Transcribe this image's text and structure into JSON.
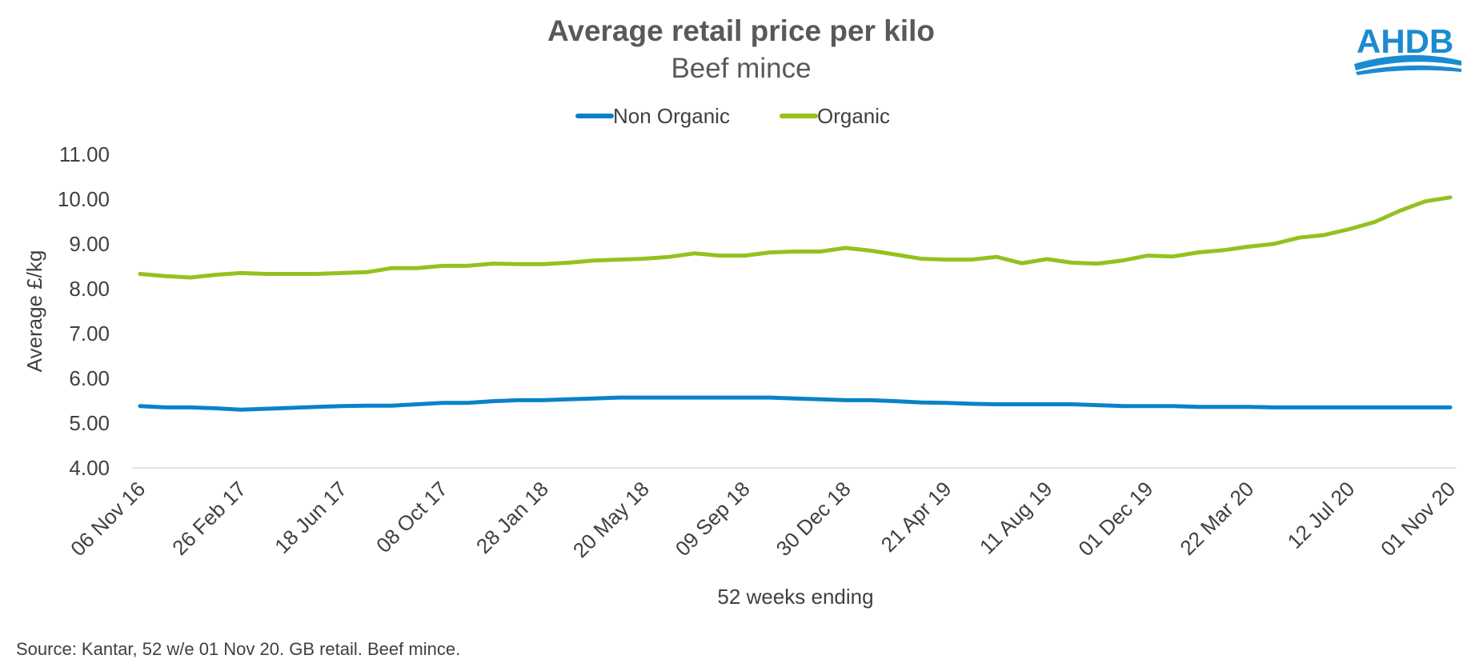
{
  "chart_data": {
    "type": "line",
    "title": "Average retail price per kilo",
    "subtitle": "Beef mince",
    "xlabel": "52 weeks ending",
    "ylabel": "Average £/kg",
    "ylim": [
      4.0,
      11.0
    ],
    "yticks": [
      "11.00",
      "10.00",
      "9.00",
      "8.00",
      "7.00",
      "6.00",
      "5.00",
      "4.00"
    ],
    "ytick_values": [
      11,
      10,
      9,
      8,
      7,
      6,
      5,
      4
    ],
    "x_labels": [
      "06 Nov 16",
      "26 Feb 17",
      "18 Jun 17",
      "08 Oct 17",
      "28 Jan 18",
      "20 May 18",
      "09 Sep 18",
      "30 Dec 18",
      "21 Apr 19",
      "11 Aug 19",
      "01 Dec 19",
      "22 Mar 20",
      "12 Jul 20",
      "01 Nov 20"
    ],
    "x_label_positions": [
      0,
      4,
      8,
      12,
      16,
      20,
      24,
      28,
      32,
      36,
      40,
      44,
      48,
      52
    ],
    "grid": false,
    "legend_position": "top-center",
    "series": [
      {
        "name": "Non Organic",
        "color": "#0a82c8",
        "values": [
          5.38,
          5.35,
          5.35,
          5.33,
          5.3,
          5.32,
          5.34,
          5.36,
          5.38,
          5.39,
          5.39,
          5.42,
          5.45,
          5.45,
          5.49,
          5.51,
          5.51,
          5.53,
          5.55,
          5.57,
          5.57,
          5.57,
          5.57,
          5.57,
          5.57,
          5.57,
          5.55,
          5.53,
          5.51,
          5.51,
          5.49,
          5.46,
          5.45,
          5.43,
          5.42,
          5.42,
          5.42,
          5.42,
          5.4,
          5.38,
          5.38,
          5.38,
          5.36,
          5.36,
          5.36,
          5.35,
          5.35,
          5.35,
          5.35,
          5.35,
          5.35,
          5.35,
          5.35
        ]
      },
      {
        "name": "Organic",
        "color": "#94c11f",
        "values": [
          8.33,
          8.28,
          8.25,
          8.31,
          8.35,
          8.33,
          8.33,
          8.33,
          8.35,
          8.37,
          8.46,
          8.46,
          8.51,
          8.51,
          8.56,
          8.55,
          8.55,
          8.58,
          8.63,
          8.65,
          8.67,
          8.71,
          8.79,
          8.74,
          8.74,
          8.81,
          8.83,
          8.83,
          8.91,
          8.85,
          8.76,
          8.67,
          8.65,
          8.65,
          8.71,
          8.57,
          8.66,
          8.58,
          8.56,
          8.63,
          8.74,
          8.72,
          8.81,
          8.86,
          8.94,
          9.0,
          9.14,
          9.2,
          9.33,
          9.49,
          9.74,
          9.95,
          10.04
        ]
      }
    ]
  },
  "source_note": "Source: Kantar, 52 w/e 01 Nov 20. GB retail. Beef mince.",
  "logo": {
    "text": "AHDB",
    "color": "#1b8bd0"
  }
}
